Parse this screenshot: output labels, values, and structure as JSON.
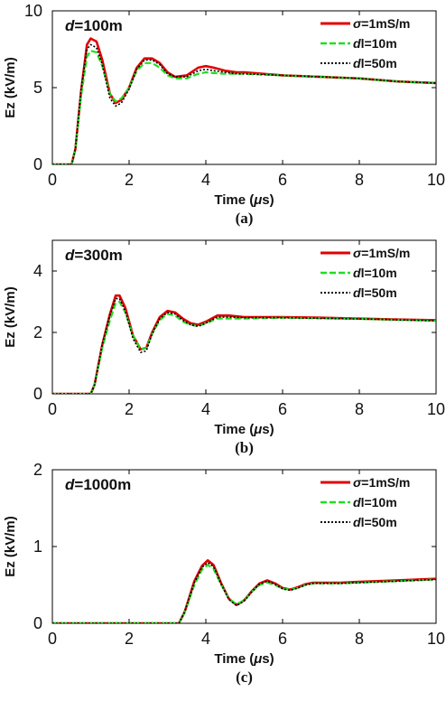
{
  "legend_entries": [
    {
      "prefix": "σ",
      "suffix": "=1mS/m",
      "color": "#e00000",
      "dash": ""
    },
    {
      "prefix": "d",
      "suffix": "l=10m",
      "color": "#22dd22",
      "dash": "7 3"
    },
    {
      "prefix": "d",
      "suffix": "l=50m",
      "color": "#000000",
      "dash": "2 2"
    }
  ],
  "chart_data": [
    {
      "type": "line",
      "caption": "(a)",
      "annotation": {
        "prefix": "d",
        "suffix": "=100m"
      },
      "xlabel": {
        "main": "Time (",
        "greek": "μ",
        "unit": "s)"
      },
      "ylabel": "Ez (kV/m)",
      "xlim": [
        0,
        10
      ],
      "ylim": [
        0,
        10
      ],
      "xticks": [
        0,
        2,
        4,
        6,
        8,
        10
      ],
      "yticks": [
        0,
        5,
        10
      ],
      "grid": false,
      "legend_position": "top-right",
      "series": [
        {
          "name": "σ=1mS/m",
          "x": [
            0,
            0.5,
            0.6,
            0.75,
            0.9,
            1.0,
            1.15,
            1.3,
            1.5,
            1.65,
            1.8,
            2.0,
            2.2,
            2.4,
            2.6,
            2.8,
            3.0,
            3.2,
            3.5,
            3.8,
            4.0,
            4.2,
            4.5,
            4.8,
            5.0,
            6.0,
            7.0,
            8.0,
            9.0,
            10.0
          ],
          "y": [
            0,
            0,
            1.0,
            4.8,
            7.8,
            8.2,
            8.0,
            6.8,
            4.6,
            4.0,
            4.2,
            5.0,
            6.3,
            6.9,
            6.9,
            6.6,
            6.0,
            5.7,
            5.8,
            6.3,
            6.4,
            6.3,
            6.1,
            6.0,
            6.0,
            5.8,
            5.7,
            5.6,
            5.4,
            5.3
          ]
        },
        {
          "name": "dl=10m",
          "x": [
            0,
            0.5,
            0.6,
            0.75,
            0.9,
            1.0,
            1.15,
            1.3,
            1.5,
            1.65,
            1.8,
            2.0,
            2.2,
            2.4,
            2.6,
            2.8,
            3.0,
            3.2,
            3.5,
            3.8,
            4.0,
            4.2,
            4.5,
            4.8,
            5.0,
            6.0,
            7.0,
            8.0,
            9.0,
            10.0
          ],
          "y": [
            0,
            0,
            1.0,
            4.5,
            7.0,
            7.4,
            7.3,
            6.4,
            4.6,
            4.1,
            4.3,
            5.0,
            6.1,
            6.6,
            6.6,
            6.3,
            5.8,
            5.6,
            5.6,
            5.9,
            6.0,
            5.95,
            5.9,
            5.9,
            5.9,
            5.8,
            5.7,
            5.6,
            5.4,
            5.3
          ]
        },
        {
          "name": "dl=50m",
          "x": [
            0,
            0.5,
            0.6,
            0.75,
            0.9,
            1.0,
            1.15,
            1.3,
            1.5,
            1.65,
            1.8,
            2.0,
            2.2,
            2.4,
            2.6,
            2.8,
            3.0,
            3.2,
            3.5,
            3.8,
            4.0,
            4.2,
            4.5,
            4.8,
            5.0,
            6.0,
            7.0,
            8.0,
            9.0,
            10.0
          ],
          "y": [
            0,
            0,
            1.0,
            4.9,
            7.5,
            7.8,
            7.6,
            6.5,
            4.3,
            3.8,
            4.0,
            4.9,
            6.2,
            6.8,
            6.8,
            6.5,
            5.9,
            5.7,
            5.7,
            6.1,
            6.2,
            6.1,
            6.0,
            5.9,
            5.9,
            5.8,
            5.7,
            5.6,
            5.4,
            5.3
          ]
        }
      ]
    },
    {
      "type": "line",
      "caption": "(b)",
      "annotation": {
        "prefix": "d",
        "suffix": "=300m"
      },
      "xlabel": {
        "main": "Time (",
        "greek": "μ",
        "unit": "s)"
      },
      "ylabel": "Ez (kV/m)",
      "xlim": [
        0,
        10
      ],
      "ylim": [
        0,
        5
      ],
      "xticks": [
        0,
        2,
        4,
        6,
        8,
        10
      ],
      "yticks": [
        0,
        2,
        4
      ],
      "grid": false,
      "legend_position": "top-right",
      "series": [
        {
          "name": "σ=1mS/m",
          "x": [
            0,
            1.0,
            1.1,
            1.3,
            1.5,
            1.65,
            1.75,
            1.9,
            2.1,
            2.3,
            2.45,
            2.6,
            2.8,
            3.0,
            3.2,
            3.4,
            3.6,
            3.8,
            4.0,
            4.3,
            4.6,
            5.0,
            6.0,
            7.0,
            8.0,
            9.0,
            10.0
          ],
          "y": [
            0,
            0,
            0.3,
            1.6,
            2.6,
            3.2,
            3.2,
            2.8,
            1.9,
            1.45,
            1.5,
            2.0,
            2.5,
            2.7,
            2.65,
            2.45,
            2.3,
            2.25,
            2.35,
            2.55,
            2.55,
            2.5,
            2.5,
            2.48,
            2.45,
            2.42,
            2.4
          ]
        },
        {
          "name": "dl=10m",
          "x": [
            0,
            1.0,
            1.1,
            1.3,
            1.5,
            1.65,
            1.75,
            1.9,
            2.1,
            2.3,
            2.45,
            2.6,
            2.8,
            3.0,
            3.2,
            3.4,
            3.6,
            3.8,
            4.0,
            4.3,
            4.6,
            5.0,
            6.0,
            7.0,
            8.0,
            9.0,
            10.0
          ],
          "y": [
            0,
            0,
            0.3,
            1.5,
            2.4,
            2.95,
            3.0,
            2.65,
            1.9,
            1.45,
            1.5,
            1.95,
            2.4,
            2.6,
            2.55,
            2.35,
            2.25,
            2.2,
            2.3,
            2.45,
            2.45,
            2.45,
            2.48,
            2.46,
            2.44,
            2.41,
            2.38
          ]
        },
        {
          "name": "dl=50m",
          "x": [
            0,
            1.0,
            1.1,
            1.3,
            1.5,
            1.65,
            1.75,
            1.9,
            2.1,
            2.3,
            2.45,
            2.6,
            2.8,
            3.0,
            3.2,
            3.4,
            3.6,
            3.8,
            4.0,
            4.3,
            4.6,
            5.0,
            6.0,
            7.0,
            8.0,
            9.0,
            10.0
          ],
          "y": [
            0,
            0,
            0.3,
            1.6,
            2.55,
            3.1,
            3.1,
            2.7,
            1.8,
            1.35,
            1.4,
            1.95,
            2.45,
            2.65,
            2.6,
            2.4,
            2.25,
            2.2,
            2.3,
            2.5,
            2.5,
            2.48,
            2.48,
            2.46,
            2.44,
            2.41,
            2.38
          ]
        }
      ]
    },
    {
      "type": "line",
      "caption": "(c)",
      "annotation": {
        "prefix": "d",
        "suffix": "=1000m"
      },
      "xlabel": {
        "main": "Time (",
        "greek": "μ",
        "unit": "s)"
      },
      "ylabel": "Ez (kV/m)",
      "xlim": [
        0,
        10
      ],
      "ylim": [
        0,
        2
      ],
      "xticks": [
        0,
        2,
        4,
        6,
        8,
        10
      ],
      "yticks": [
        0,
        1,
        2
      ],
      "grid": false,
      "legend_position": "top-right",
      "series": [
        {
          "name": "σ=1mS/m",
          "x": [
            0,
            3.3,
            3.45,
            3.7,
            3.9,
            4.05,
            4.2,
            4.4,
            4.6,
            4.8,
            5.0,
            5.2,
            5.4,
            5.6,
            5.8,
            6.0,
            6.2,
            6.4,
            6.6,
            6.8,
            7.0,
            7.5,
            8.0,
            9.0,
            10.0
          ],
          "y": [
            0,
            0,
            0.15,
            0.55,
            0.75,
            0.82,
            0.76,
            0.52,
            0.32,
            0.24,
            0.3,
            0.42,
            0.52,
            0.56,
            0.52,
            0.46,
            0.44,
            0.47,
            0.51,
            0.53,
            0.53,
            0.53,
            0.54,
            0.56,
            0.58
          ]
        },
        {
          "name": "dl=10m",
          "x": [
            0,
            3.3,
            3.45,
            3.7,
            3.9,
            4.05,
            4.2,
            4.4,
            4.6,
            4.8,
            5.0,
            5.2,
            5.4,
            5.6,
            5.8,
            6.0,
            6.2,
            6.4,
            6.6,
            6.8,
            7.0,
            7.5,
            8.0,
            9.0,
            10.0
          ],
          "y": [
            0,
            0,
            0.14,
            0.5,
            0.7,
            0.76,
            0.71,
            0.5,
            0.32,
            0.25,
            0.3,
            0.41,
            0.5,
            0.53,
            0.5,
            0.45,
            0.44,
            0.46,
            0.5,
            0.52,
            0.52,
            0.52,
            0.53,
            0.55,
            0.57
          ]
        },
        {
          "name": "dl=50m",
          "x": [
            0,
            3.3,
            3.45,
            3.7,
            3.9,
            4.05,
            4.2,
            4.4,
            4.6,
            4.8,
            5.0,
            5.2,
            5.4,
            5.6,
            5.8,
            6.0,
            6.2,
            6.4,
            6.6,
            6.8,
            7.0,
            7.5,
            8.0,
            9.0,
            10.0
          ],
          "y": [
            0,
            0,
            0.15,
            0.53,
            0.73,
            0.79,
            0.74,
            0.51,
            0.31,
            0.23,
            0.29,
            0.41,
            0.51,
            0.55,
            0.51,
            0.45,
            0.43,
            0.46,
            0.5,
            0.52,
            0.52,
            0.52,
            0.53,
            0.55,
            0.57
          ]
        }
      ]
    }
  ]
}
